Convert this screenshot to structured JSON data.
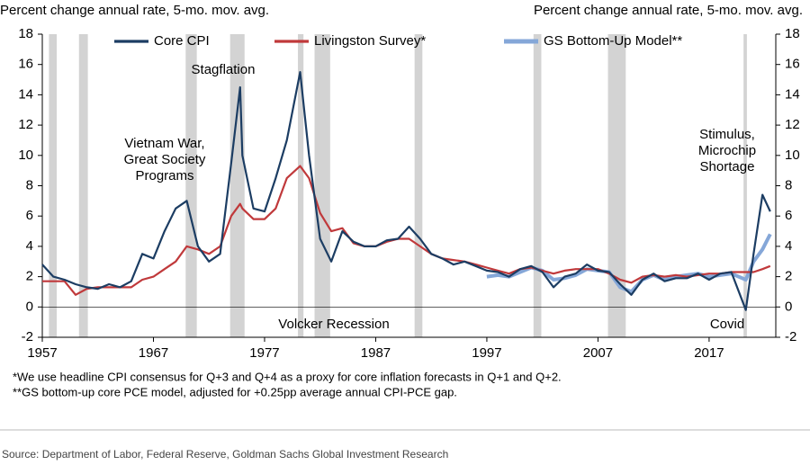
{
  "chart_data": {
    "type": "line",
    "y_axis_title": "Percent change annual rate, 5-mo. mov. avg.",
    "y2_axis_title": "Percent change annual rate, 5-mo. mov. avg.",
    "x": [
      1957,
      1958,
      1959,
      1960,
      1961,
      1962,
      1963,
      1964,
      1965,
      1966,
      1967,
      1968,
      1969,
      1970,
      1971,
      1972,
      1973,
      1974,
      1974.8,
      1975,
      1976,
      1977,
      1978,
      1979,
      1980.2,
      1981,
      1982,
      1983,
      1984,
      1985,
      1986,
      1987,
      1988,
      1989,
      1990,
      1991,
      1992,
      1993,
      1994,
      1995,
      1996,
      1997,
      1998,
      1999,
      2000,
      2001,
      2002,
      2003,
      2004,
      2005,
      2006,
      2007,
      2008,
      2009,
      2010,
      2011,
      2012,
      2013,
      2014,
      2015,
      2016,
      2017,
      2018,
      2019,
      2020.3,
      2021,
      2021.8,
      2022.5
    ],
    "series": [
      {
        "name": "Core CPI",
        "color": "#1c3d63",
        "values": [
          2.8,
          2.0,
          1.8,
          1.5,
          1.3,
          1.2,
          1.5,
          1.3,
          1.7,
          3.5,
          3.2,
          5.0,
          6.5,
          7.0,
          4.0,
          3.0,
          3.5,
          9.5,
          14.5,
          10.0,
          6.5,
          6.3,
          8.5,
          11.0,
          15.5,
          10.0,
          4.5,
          3.0,
          5.0,
          4.3,
          4.0,
          4.0,
          4.4,
          4.5,
          5.3,
          4.5,
          3.5,
          3.2,
          2.8,
          3.0,
          2.7,
          2.4,
          2.3,
          2.0,
          2.5,
          2.7,
          2.3,
          1.3,
          2.0,
          2.2,
          2.8,
          2.4,
          2.3,
          1.5,
          0.8,
          1.8,
          2.2,
          1.7,
          1.9,
          1.9,
          2.2,
          1.8,
          2.2,
          2.3,
          -0.2,
          3.5,
          7.4,
          6.3
        ]
      },
      {
        "name": "Livingston Survey*",
        "color": "#c0393b",
        "values": [
          1.7,
          1.7,
          1.7,
          0.8,
          1.2,
          1.3,
          1.3,
          1.3,
          1.3,
          1.8,
          2.0,
          2.5,
          3.0,
          4.0,
          3.8,
          3.5,
          4.0,
          6.0,
          6.8,
          6.5,
          5.8,
          5.8,
          6.5,
          8.5,
          9.3,
          8.5,
          6.2,
          5.0,
          5.2,
          4.2,
          4.0,
          4.0,
          4.3,
          4.5,
          4.5,
          4.0,
          3.5,
          3.2,
          3.1,
          3.0,
          2.8,
          2.6,
          2.4,
          2.2,
          2.5,
          2.6,
          2.4,
          2.2,
          2.4,
          2.5,
          2.5,
          2.5,
          2.2,
          1.8,
          1.6,
          2.0,
          2.1,
          2.0,
          2.1,
          2.0,
          2.1,
          2.2,
          2.2,
          2.3,
          2.3,
          2.3,
          2.5,
          2.7
        ]
      },
      {
        "name": "GS Bottom-Up Model**",
        "color": "#85a7d8",
        "values": [
          null,
          null,
          null,
          null,
          null,
          null,
          null,
          null,
          null,
          null,
          null,
          null,
          null,
          null,
          null,
          null,
          null,
          null,
          null,
          null,
          null,
          null,
          null,
          null,
          null,
          null,
          null,
          null,
          null,
          null,
          null,
          null,
          null,
          null,
          null,
          null,
          null,
          null,
          null,
          null,
          null,
          2.0,
          2.1,
          2.0,
          2.3,
          2.6,
          2.4,
          1.8,
          1.9,
          2.1,
          2.5,
          2.4,
          2.3,
          1.3,
          1.0,
          1.8,
          2.1,
          1.8,
          2.0,
          2.1,
          2.2,
          2.0,
          2.1,
          2.2,
          1.8,
          3.0,
          3.8,
          4.8
        ]
      }
    ],
    "recessions": [
      [
        1957.6,
        1958.3
      ],
      [
        1960.3,
        1961.1
      ],
      [
        1969.9,
        1970.9
      ],
      [
        1973.9,
        1975.2
      ],
      [
        1980.0,
        1980.5
      ],
      [
        1981.5,
        1982.9
      ],
      [
        1990.5,
        1991.2
      ],
      [
        2001.2,
        2001.9
      ],
      [
        2007.9,
        2009.5
      ],
      [
        2020.1,
        2020.4
      ]
    ],
    "xlim": [
      1957,
      2023
    ],
    "xticks": [
      1957,
      1967,
      1977,
      1987,
      1997,
      2007,
      2017
    ],
    "ylim": [
      -2,
      18
    ],
    "yticks": [
      -2,
      0,
      2,
      4,
      6,
      8,
      10,
      12,
      14,
      16,
      18
    ],
    "y2lim": [
      -2,
      18
    ],
    "y2ticks": [
      -2,
      0,
      2,
      4,
      6,
      8,
      10,
      12,
      14,
      16,
      18
    ],
    "legend": "top",
    "annotations": [
      {
        "lines": [
          "Stagflation"
        ]
      },
      {
        "lines": [
          "Vietnam War,",
          "Great Society",
          "Programs"
        ]
      },
      {
        "lines": [
          "Volcker Recession"
        ]
      },
      {
        "lines": [
          "Stimulus,",
          "Microchip",
          "Shortage"
        ]
      },
      {
        "lines": [
          "Covid"
        ]
      }
    ],
    "footnotes": [
      "*We use headline CPI consensus for Q+3 and Q+4 as a proxy for core inflation forecasts in Q+1 and Q+2.",
      "**GS bottom-up core PCE model, adjusted for +0.25pp average annual CPI-PCE gap."
    ],
    "source": "Source: Department of Labor, Federal Reserve, Goldman Sachs Global Investment Research"
  }
}
